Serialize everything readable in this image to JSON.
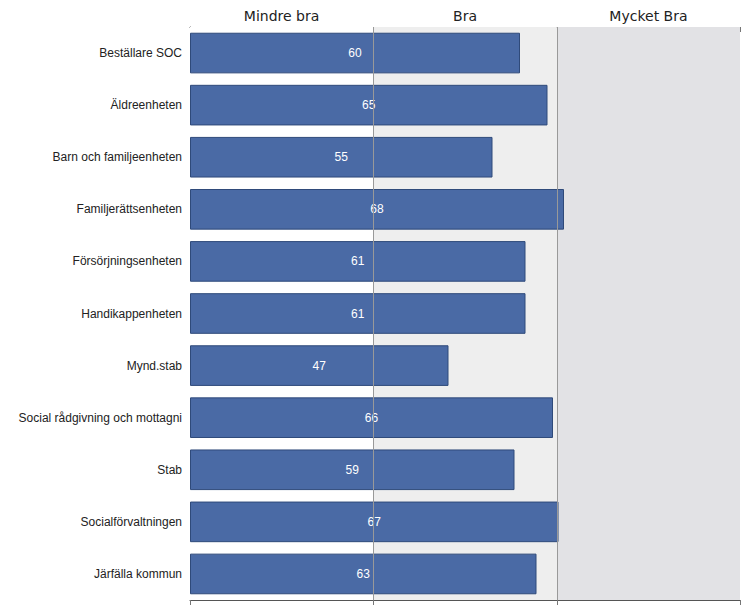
{
  "chart_data": {
    "type": "bar",
    "orientation": "horizontal",
    "categories": [
      "Beställare SOC",
      "Äldreenheten",
      "Barn och familjeenheten",
      "Familjerättsenheten",
      "Försörjningsenheten",
      "Handikappenheten",
      "Mynd.stab",
      "Social rådgivning och mottagni",
      "Stab",
      "Socialförvaltningen",
      "Järfälla kommun"
    ],
    "values": [
      60,
      65,
      55,
      68,
      61,
      61,
      47,
      66,
      59,
      67,
      63
    ],
    "color": "#4a6aa5",
    "xlim": [
      0,
      100
    ],
    "xticks": [
      0,
      33.3,
      66.7,
      100
    ],
    "bands": [
      {
        "label": "Mindre bra",
        "from": 0,
        "to": 33.3,
        "color": "#ffffff"
      },
      {
        "label": "Bra",
        "from": 33.3,
        "to": 66.7,
        "color": "#eeeeee"
      },
      {
        "label": "Mycket Bra",
        "from": 66.7,
        "to": 100,
        "color": "#e2e2e5"
      }
    ],
    "grid": true,
    "data_labels": true,
    "tick_labels": "y"
  }
}
